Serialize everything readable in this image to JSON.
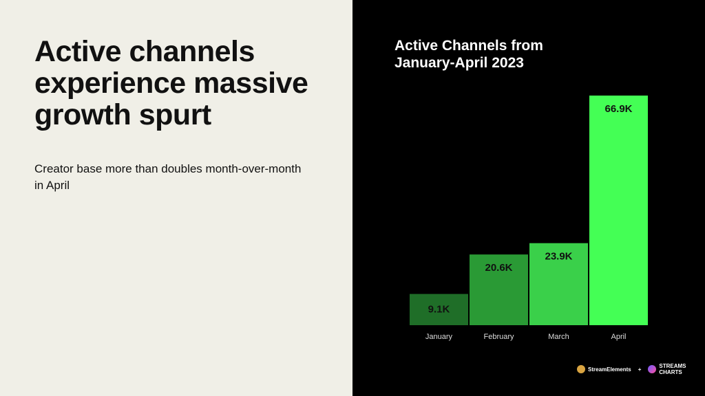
{
  "left": {
    "headline": "Active channels experience massive growth spurt",
    "subtitle": "Creator base more than doubles month-over-month in April"
  },
  "chart_data": {
    "type": "bar",
    "title": "Active Channels from January-April 2023",
    "categories": [
      "January",
      "February",
      "March",
      "April"
    ],
    "values": [
      9.1,
      20.6,
      23.9,
      66.9
    ],
    "data_labels": [
      "9.1K",
      "20.6K",
      "23.9K",
      "66.9K"
    ],
    "colors": [
      "#1f6e28",
      "#2a9a35",
      "#3ad04a",
      "#44ff55"
    ],
    "ylim": [
      0,
      66.9
    ],
    "grid": false,
    "xlabel": "",
    "ylabel": ""
  },
  "logos": {
    "brand1": "StreamElements",
    "plus": "+",
    "brand2": "STREAMS CHARTS"
  }
}
